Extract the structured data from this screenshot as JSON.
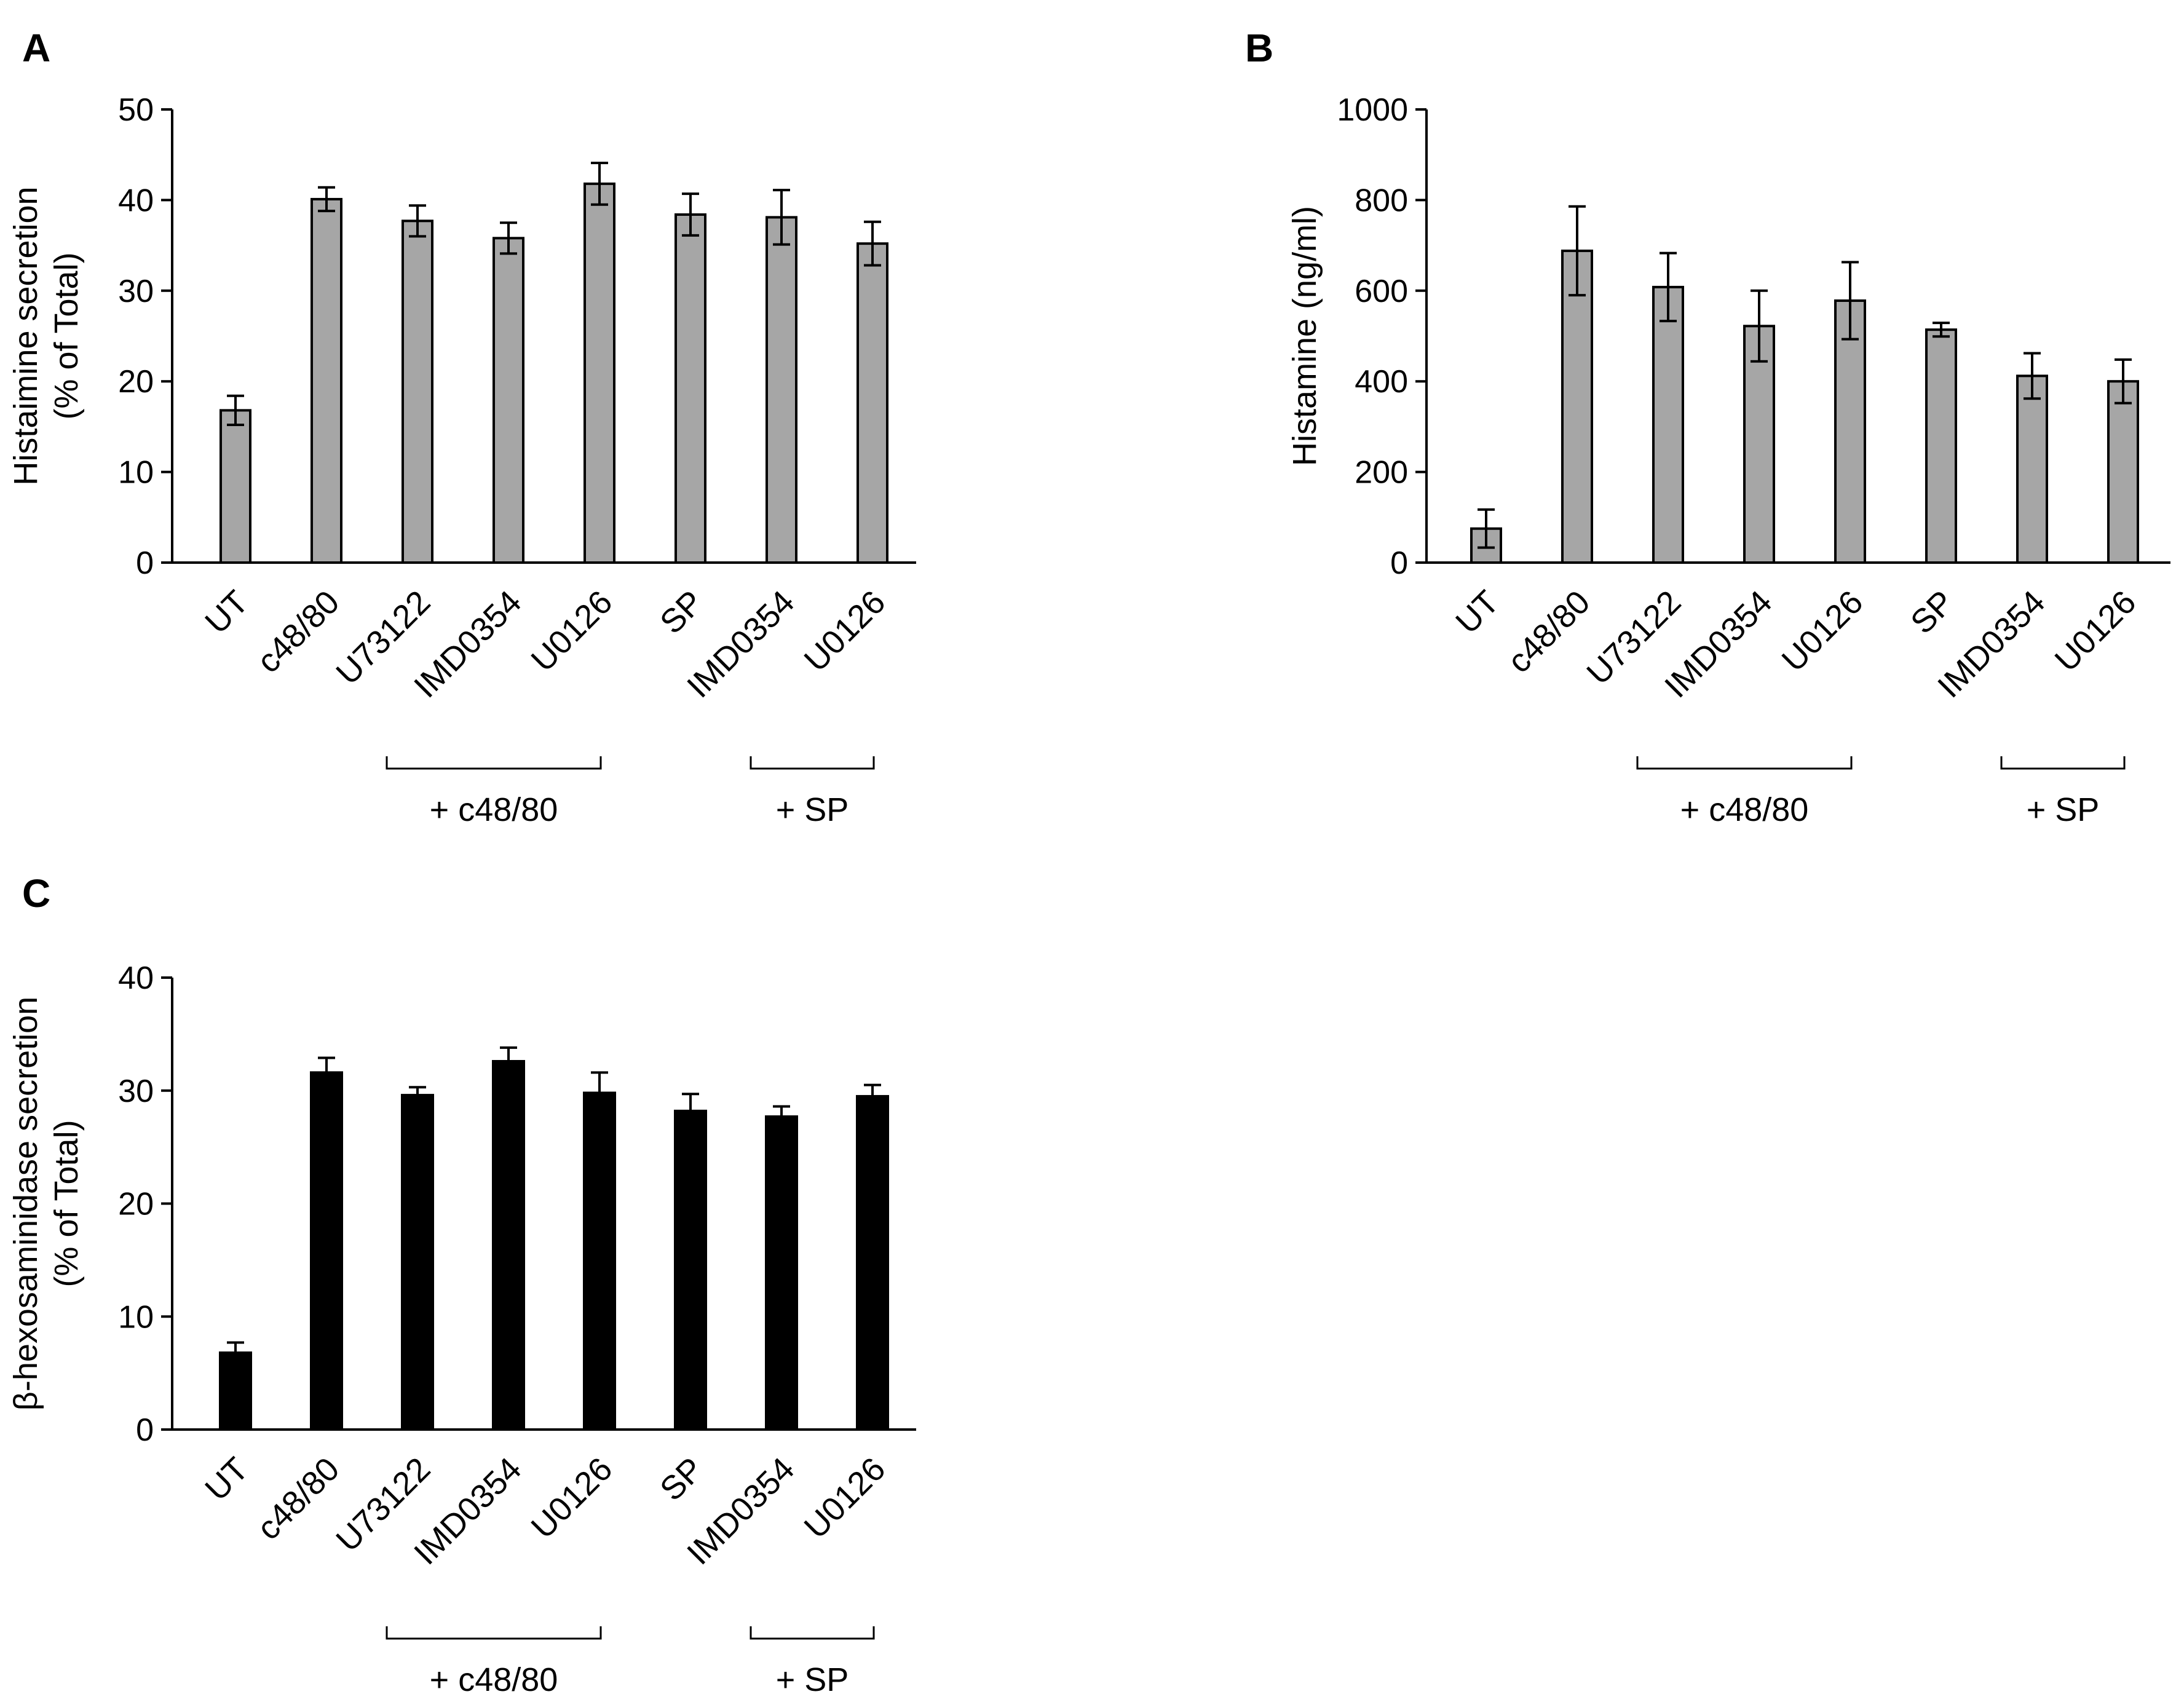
{
  "figure": {
    "background": "#ffffff"
  },
  "chart_data": [
    {
      "id": "A",
      "panel_label": "A",
      "type": "bar",
      "ylabel_lines": [
        "Histaimine secretion",
        "(% of Total)"
      ],
      "ylim": [
        0,
        50
      ],
      "yticks": [
        0,
        10,
        20,
        30,
        40,
        50
      ],
      "categories": [
        "UT",
        "c48/80",
        "U73122",
        "IMD0354",
        "U0126",
        "SP",
        "IMD0354",
        "U0126"
      ],
      "values": [
        16.8,
        40.1,
        37.7,
        35.8,
        41.8,
        38.4,
        38.1,
        35.2
      ],
      "errors": [
        1.6,
        1.3,
        1.7,
        1.7,
        2.3,
        2.3,
        3.0,
        2.4
      ],
      "bar_color": "#a6a6a6",
      "groups": [
        {
          "label": "+ c48/80",
          "from": 2,
          "to": 4
        },
        {
          "label": "+ SP",
          "from": 6,
          "to": 7
        }
      ]
    },
    {
      "id": "B",
      "panel_label": "B",
      "type": "bar",
      "ylabel_lines": [
        "Histamine (ng/ml)"
      ],
      "ylim": [
        0,
        1000
      ],
      "yticks": [
        0,
        200,
        400,
        600,
        800,
        1000
      ],
      "categories": [
        "UT",
        "c48/80",
        "U73122",
        "IMD0354",
        "U0126",
        "SP",
        "IMD0354",
        "U0126"
      ],
      "values": [
        75,
        688,
        608,
        522,
        578,
        514,
        412,
        400
      ],
      "errors": [
        42,
        98,
        75,
        78,
        85,
        15,
        50,
        48
      ],
      "bar_color": "#a6a6a6",
      "groups": [
        {
          "label": "+ c48/80",
          "from": 2,
          "to": 4
        },
        {
          "label": "+ SP",
          "from": 6,
          "to": 7
        }
      ]
    },
    {
      "id": "C",
      "panel_label": "C",
      "type": "bar",
      "ylabel_lines": [
        "β-hexosaminidase secretion",
        "(% of Total)"
      ],
      "ylim": [
        0,
        40
      ],
      "yticks": [
        0,
        10,
        20,
        30,
        40
      ],
      "categories": [
        "UT",
        "c48/80",
        "U73122",
        "IMD0354",
        "U0126",
        "SP",
        "IMD0354",
        "U0126"
      ],
      "values": [
        6.8,
        31.6,
        29.6,
        32.6,
        29.8,
        28.2,
        27.7,
        29.5
      ],
      "errors": [
        0.9,
        1.3,
        0.7,
        1.2,
        1.8,
        1.5,
        0.9,
        1.0
      ],
      "bar_color": "#000000",
      "groups": [
        {
          "label": "+ c48/80",
          "from": 2,
          "to": 4
        },
        {
          "label": "+ SP",
          "from": 6,
          "to": 7
        }
      ]
    }
  ]
}
